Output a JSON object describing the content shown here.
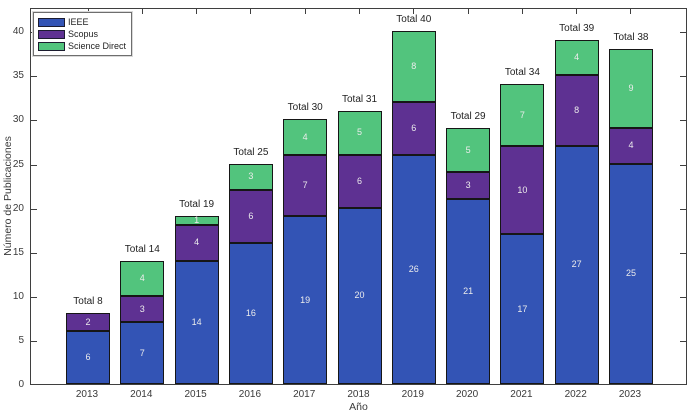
{
  "chart_data": {
    "type": "bar",
    "stacked": true,
    "categories": [
      "2013",
      "2014",
      "2015",
      "2016",
      "2017",
      "2018",
      "2019",
      "2020",
      "2021",
      "2022",
      "2023"
    ],
    "series": [
      {
        "name": "IEEE",
        "color": "#3354b5",
        "values": [
          6,
          7,
          14,
          16,
          19,
          20,
          26,
          21,
          17,
          27,
          25
        ]
      },
      {
        "name": "Scopus",
        "color": "#5e3192",
        "values": [
          2,
          3,
          4,
          6,
          7,
          6,
          6,
          3,
          10,
          8,
          4
        ]
      },
      {
        "name": "Science Direct",
        "color": "#52c47d",
        "values": [
          0,
          4,
          1,
          3,
          4,
          5,
          8,
          5,
          7,
          4,
          9
        ]
      }
    ],
    "totals": [
      8,
      14,
      19,
      25,
      30,
      31,
      40,
      29,
      34,
      39,
      38
    ],
    "total_labels": [
      "Total 8",
      "Total 14",
      "Total 19",
      "Total 25",
      "Total 30",
      "Total 31",
      "Total 40",
      "Total 29",
      "Total 34",
      "Total 39",
      "Total 38"
    ],
    "xlabel": "Año",
    "ylabel": "Número de Publicaciones",
    "y_ticks": [
      0,
      5,
      10,
      15,
      20,
      25,
      30,
      35,
      40
    ],
    "ylim": [
      0,
      42.75
    ],
    "grid": false,
    "legend_position": "top-left",
    "bar_edge_color": "#161616",
    "value_label_color": "#ececec",
    "axis_color": "#3f3f3f"
  }
}
